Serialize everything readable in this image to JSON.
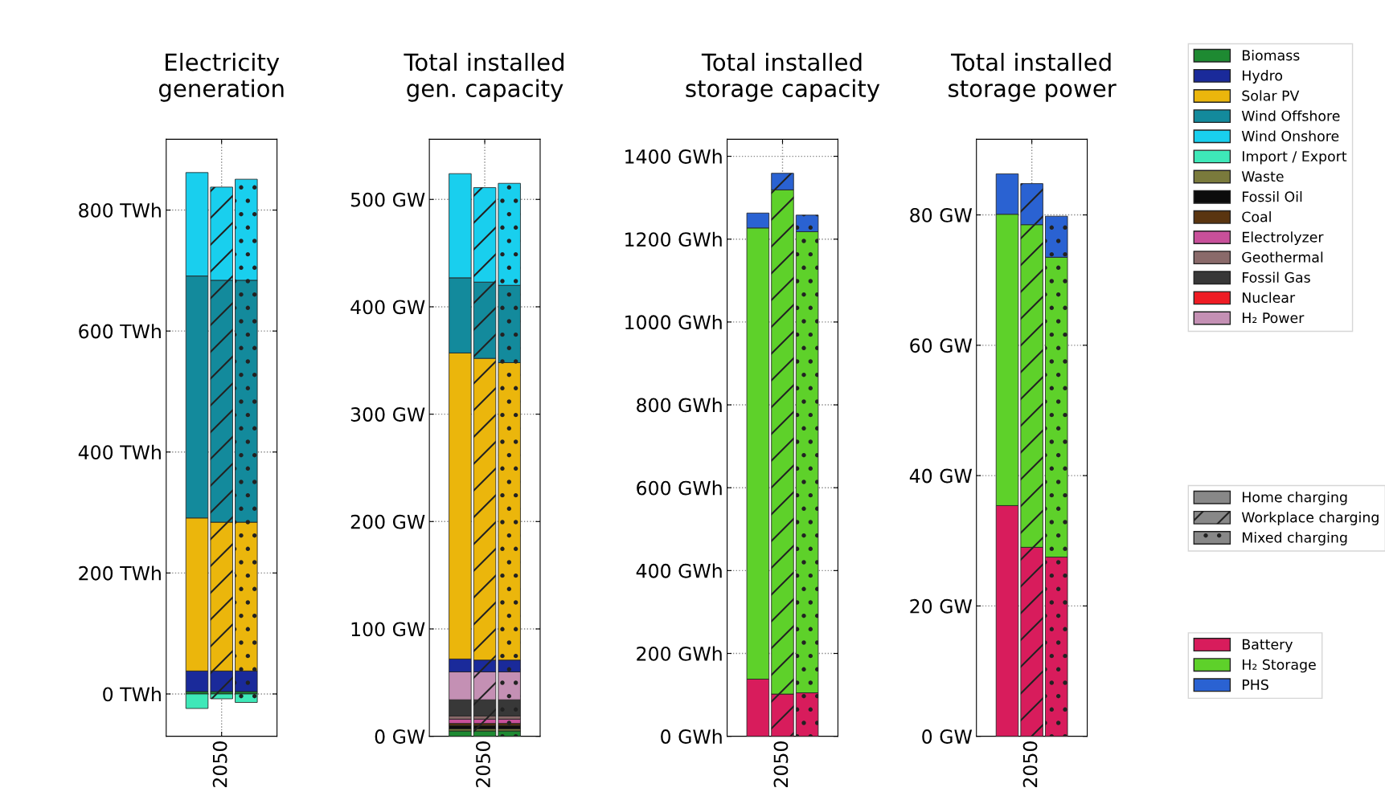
{
  "chart_data": [
    {
      "type": "bar",
      "stacked": true,
      "title": "Electricity\ngeneration",
      "categories": [
        null,
        "2050",
        null
      ],
      "ylim": [
        -70,
        917
      ],
      "yticks": [
        {
          "value": 0,
          "label": "0 TWh"
        },
        {
          "value": 200,
          "label": "200 TWh"
        },
        {
          "value": 400,
          "label": "400 TWh"
        },
        {
          "value": 600,
          "label": "600 TWh"
        },
        {
          "value": 800,
          "label": "800 TWh"
        }
      ],
      "grid": true,
      "legend": "right",
      "annotations": [
        "Home charging",
        "Workplace charging",
        "Mixed charging"
      ],
      "series": [
        {
          "name": "Biomass",
          "color": "#1e8a32",
          "values": [
            4,
            4,
            4
          ]
        },
        {
          "name": "Hydro",
          "color": "#1a2a9a",
          "values": [
            34,
            34,
            34
          ]
        },
        {
          "name": "Solar PV",
          "color": "#ebb60c",
          "values": [
            253,
            246,
            246
          ]
        },
        {
          "name": "Wind Offshore",
          "color": "#138a9c",
          "values": [
            400,
            400,
            400
          ]
        },
        {
          "name": "Wind Onshore",
          "color": "#19cfee",
          "values": [
            171,
            154,
            167
          ]
        },
        {
          "name": "Import / Export",
          "color": "#3ee8b8",
          "values": [
            -24,
            -8,
            -14
          ]
        }
      ]
    },
    {
      "type": "bar",
      "stacked": true,
      "title": "Total installed\ngen. capacity",
      "categories": [
        null,
        "2050",
        null
      ],
      "ylim": [
        0,
        556
      ],
      "yticks": [
        {
          "value": 0,
          "label": "0 GW"
        },
        {
          "value": 100,
          "label": "100 GW"
        },
        {
          "value": 200,
          "label": "200 GW"
        },
        {
          "value": 300,
          "label": "300 GW"
        },
        {
          "value": 400,
          "label": "400 GW"
        },
        {
          "value": 500,
          "label": "500 GW"
        }
      ],
      "grid": true,
      "legend": "right",
      "series": [
        {
          "name": "Biomass",
          "color": "#1e8a32",
          "values": [
            5,
            5,
            5
          ]
        },
        {
          "name": "Waste",
          "color": "#7a7a3c",
          "values": [
            2,
            2,
            2
          ]
        },
        {
          "name": "Fossil Oil",
          "color": "#0c0c0c",
          "values": [
            3,
            3,
            3
          ]
        },
        {
          "name": "Coal",
          "color": "#5a3510",
          "values": [
            2,
            2,
            2
          ]
        },
        {
          "name": "Electrolyzer",
          "color": "#c8509a",
          "values": [
            4,
            4,
            4
          ]
        },
        {
          "name": "Geothermal",
          "color": "#8a6a6a",
          "values": [
            3,
            3,
            3
          ]
        },
        {
          "name": "Fossil Gas",
          "color": "#383838",
          "values": [
            15,
            15,
            15
          ]
        },
        {
          "name": "Nuclear",
          "color": "#ee1c24",
          "values": [
            null,
            null,
            null
          ]
        },
        {
          "name": "H₂ Power",
          "color": "#c490b4",
          "values": [
            26,
            26,
            26
          ]
        },
        {
          "name": "Hydro",
          "color": "#1a2a9a",
          "values": [
            12,
            11,
            11
          ]
        },
        {
          "name": "Solar PV",
          "color": "#ebb60c",
          "values": [
            285,
            281,
            277
          ]
        },
        {
          "name": "Wind Offshore",
          "color": "#138a9c",
          "values": [
            70,
            71,
            72
          ]
        },
        {
          "name": "Wind Onshore",
          "color": "#19cfee",
          "values": [
            97,
            88,
            95
          ]
        }
      ]
    },
    {
      "type": "bar",
      "stacked": true,
      "title": "Total installed\nstorage capacity",
      "categories": [
        null,
        "2050",
        null
      ],
      "ylim": [
        0,
        1441
      ],
      "yticks": [
        {
          "value": 0,
          "label": "0 GWh"
        },
        {
          "value": 200,
          "label": "200 GWh"
        },
        {
          "value": 400,
          "label": "400 GWh"
        },
        {
          "value": 600,
          "label": "600 GWh"
        },
        {
          "value": 800,
          "label": "800 GWh"
        },
        {
          "value": 1000,
          "label": "1000 GWh"
        },
        {
          "value": 1200,
          "label": "1200 GWh"
        },
        {
          "value": 1400,
          "label": "1400 GWh"
        }
      ],
      "grid": true,
      "legend": "right",
      "series": [
        {
          "name": "Battery",
          "color": "#d81c5c",
          "values": [
            138,
            102,
            105
          ]
        },
        {
          "name": "H₂ Storage",
          "color": "#5ed12a",
          "values": [
            1089,
            1217,
            1113
          ]
        },
        {
          "name": "PHS",
          "color": "#2a62d2",
          "values": [
            36,
            40,
            40
          ]
        }
      ]
    },
    {
      "type": "bar",
      "stacked": true,
      "title": "Total installed\nstorage power",
      "categories": [
        null,
        "2050",
        null
      ],
      "ylim": [
        0,
        91.6
      ],
      "yticks": [
        {
          "value": 0,
          "label": "0 GW"
        },
        {
          "value": 20,
          "label": "20 GW"
        },
        {
          "value": 40,
          "label": "40 GW"
        },
        {
          "value": 60,
          "label": "60 GW"
        },
        {
          "value": 80,
          "label": "80 GW"
        }
      ],
      "grid": true,
      "legend": "right",
      "series": [
        {
          "name": "Battery",
          "color": "#d81c5c",
          "values": [
            35.4,
            29.0,
            27.5
          ]
        },
        {
          "name": "H₂ Storage",
          "color": "#5ed12a",
          "values": [
            44.7,
            49.5,
            46.0
          ]
        },
        {
          "name": "PHS",
          "color": "#2a62d2",
          "values": [
            6.2,
            6.3,
            6.3
          ]
        }
      ]
    }
  ]
}
